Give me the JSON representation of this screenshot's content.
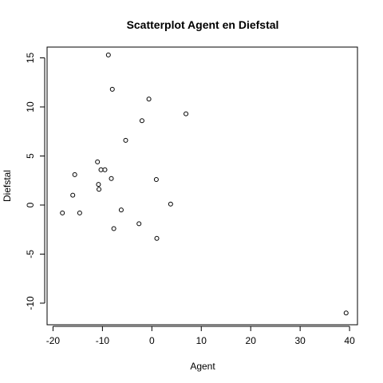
{
  "chart_data": {
    "type": "scatter",
    "title": "Scatterplot Agent en Diefstal",
    "xlabel": "Agent",
    "ylabel": "Diefstal",
    "xlim": [
      -21.2,
      41.6
    ],
    "ylim": [
      -12.2,
      16.1
    ],
    "xticks": [
      -20,
      -10,
      0,
      10,
      20,
      30,
      40
    ],
    "yticks": [
      -10,
      -5,
      0,
      5,
      10,
      15
    ],
    "grid": false,
    "legend": "none",
    "points": [
      {
        "x": -8.8,
        "y": 15.3
      },
      {
        "x": -8.0,
        "y": 11.8
      },
      {
        "x": -0.6,
        "y": 10.8
      },
      {
        "x": 6.9,
        "y": 9.3
      },
      {
        "x": -2.0,
        "y": 8.6
      },
      {
        "x": -5.3,
        "y": 6.6
      },
      {
        "x": -11.0,
        "y": 4.4
      },
      {
        "x": -10.3,
        "y": 3.6
      },
      {
        "x": -9.5,
        "y": 3.6
      },
      {
        "x": -15.6,
        "y": 3.1
      },
      {
        "x": -8.2,
        "y": 2.7
      },
      {
        "x": 0.9,
        "y": 2.6
      },
      {
        "x": -10.8,
        "y": 2.1
      },
      {
        "x": -10.7,
        "y": 1.6
      },
      {
        "x": -16.0,
        "y": 1.0
      },
      {
        "x": 3.8,
        "y": 0.1
      },
      {
        "x": -6.2,
        "y": -0.5
      },
      {
        "x": -18.1,
        "y": -0.8
      },
      {
        "x": -14.6,
        "y": -0.8
      },
      {
        "x": -2.6,
        "y": -1.9
      },
      {
        "x": -7.7,
        "y": -2.4
      },
      {
        "x": 1.0,
        "y": -3.4
      },
      {
        "x": 39.3,
        "y": -11.0
      }
    ]
  }
}
